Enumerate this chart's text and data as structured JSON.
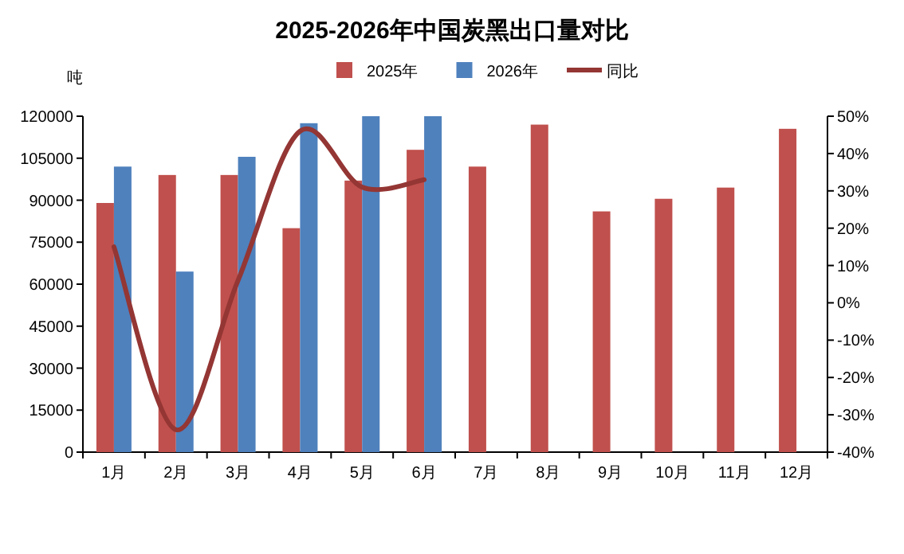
{
  "chart_data": {
    "type": "bar",
    "title": "2025-2026年中国炭黑出口量对比",
    "ylabel": "吨",
    "categories": [
      "1月",
      "2月",
      "3月",
      "4月",
      "5月",
      "6月",
      "7月",
      "8月",
      "9月",
      "10月",
      "11月",
      "12月"
    ],
    "series": [
      {
        "name": "2025年",
        "color": "#c0504d",
        "values": [
          89000,
          99000,
          99000,
          80000,
          97000,
          108000,
          102000,
          117000,
          86000,
          90500,
          94500,
          115500
        ]
      },
      {
        "name": "2026年",
        "color": "#4f81bd",
        "values": [
          102000,
          64500,
          105500,
          117500,
          120000,
          120000,
          null,
          null,
          null,
          null,
          null,
          null
        ]
      },
      {
        "name": "同比",
        "type": "line",
        "axis": "y2",
        "color": "#943634",
        "values": [
          15,
          -34,
          6,
          46,
          31,
          33,
          null,
          null,
          null,
          null,
          null,
          null
        ]
      }
    ],
    "ylim": [
      0,
      120000
    ],
    "yticks": [
      0,
      15000,
      30000,
      45000,
      60000,
      75000,
      90000,
      105000,
      120000
    ],
    "y2lim": [
      -40,
      50
    ],
    "y2ticks": [
      {
        "value": -40,
        "label": "-40%"
      },
      {
        "value": -30,
        "label": "-30%"
      },
      {
        "value": -20,
        "label": "-20%"
      },
      {
        "value": -10,
        "label": "-10%"
      },
      {
        "value": 0,
        "label": "0%"
      },
      {
        "value": 10,
        "label": "10%"
      },
      {
        "value": 20,
        "label": "20%"
      },
      {
        "value": 30,
        "label": "30%"
      },
      {
        "value": 40,
        "label": "40%"
      },
      {
        "value": 50,
        "label": "50%"
      }
    ],
    "legend": "top",
    "grid": false
  }
}
